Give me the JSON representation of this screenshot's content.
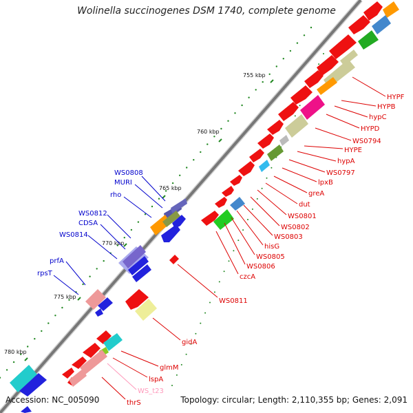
{
  "title": "Wolinella succinogenes DSM 1740, complete genome",
  "footer": {
    "accession": "Accession: NC_005090",
    "summary": "Topology: circular; Length: 2,110,355 bp; Genes: 2,091"
  },
  "colors": {
    "backbone": "#888888",
    "forward_label": "#dd0000",
    "reverse_label": "#0000cc",
    "tick": "#228822"
  },
  "ticks": [
    {
      "label": "755 kbp"
    },
    {
      "label": "760 kbp"
    },
    {
      "label": "765 kbp"
    },
    {
      "label": "770 kbp"
    },
    {
      "label": "775 kbp"
    },
    {
      "label": "780 kbp"
    }
  ],
  "forward_genes": [
    {
      "label": "HYPF",
      "color": "#dd0000"
    },
    {
      "label": "HYPB",
      "color": "#dd0000"
    },
    {
      "label": "hypC",
      "color": "#dd0000"
    },
    {
      "label": "HYPD",
      "color": "#dd0000"
    },
    {
      "label": "WS0794",
      "color": "#dd0000"
    },
    {
      "label": "HYPE",
      "color": "#dd0000"
    },
    {
      "label": "hypA",
      "color": "#dd0000"
    },
    {
      "label": "WS0797",
      "color": "#dd0000"
    },
    {
      "label": "lpxB",
      "color": "#dd0000"
    },
    {
      "label": "greA",
      "color": "#dd0000"
    },
    {
      "label": "dut",
      "color": "#dd0000"
    },
    {
      "label": "WS0801",
      "color": "#dd0000"
    },
    {
      "label": "WS0802",
      "color": "#dd0000"
    },
    {
      "label": "WS0803",
      "color": "#dd0000"
    },
    {
      "label": "hisG",
      "color": "#dd0000"
    },
    {
      "label": "WS0805",
      "color": "#dd0000"
    },
    {
      "label": "WS0806",
      "color": "#dd0000"
    },
    {
      "label": "czcA",
      "color": "#dd0000"
    },
    {
      "label": "WS0811",
      "color": "#dd0000"
    },
    {
      "label": "gidA",
      "color": "#dd0000"
    },
    {
      "label": "glmM",
      "color": "#dd0000"
    },
    {
      "label": "lspA",
      "color": "#dd0000"
    },
    {
      "label": "WS_t23",
      "color": "#ff99bb"
    },
    {
      "label": "thrS",
      "color": "#dd0000"
    }
  ],
  "reverse_genes": [
    {
      "label": "WS0808"
    },
    {
      "label": "MURI"
    },
    {
      "label": "rho"
    },
    {
      "label": "WS0812"
    },
    {
      "label": "CDSA"
    },
    {
      "label": "WS0814"
    },
    {
      "label": "prfA"
    },
    {
      "label": "rpsT"
    }
  ]
}
